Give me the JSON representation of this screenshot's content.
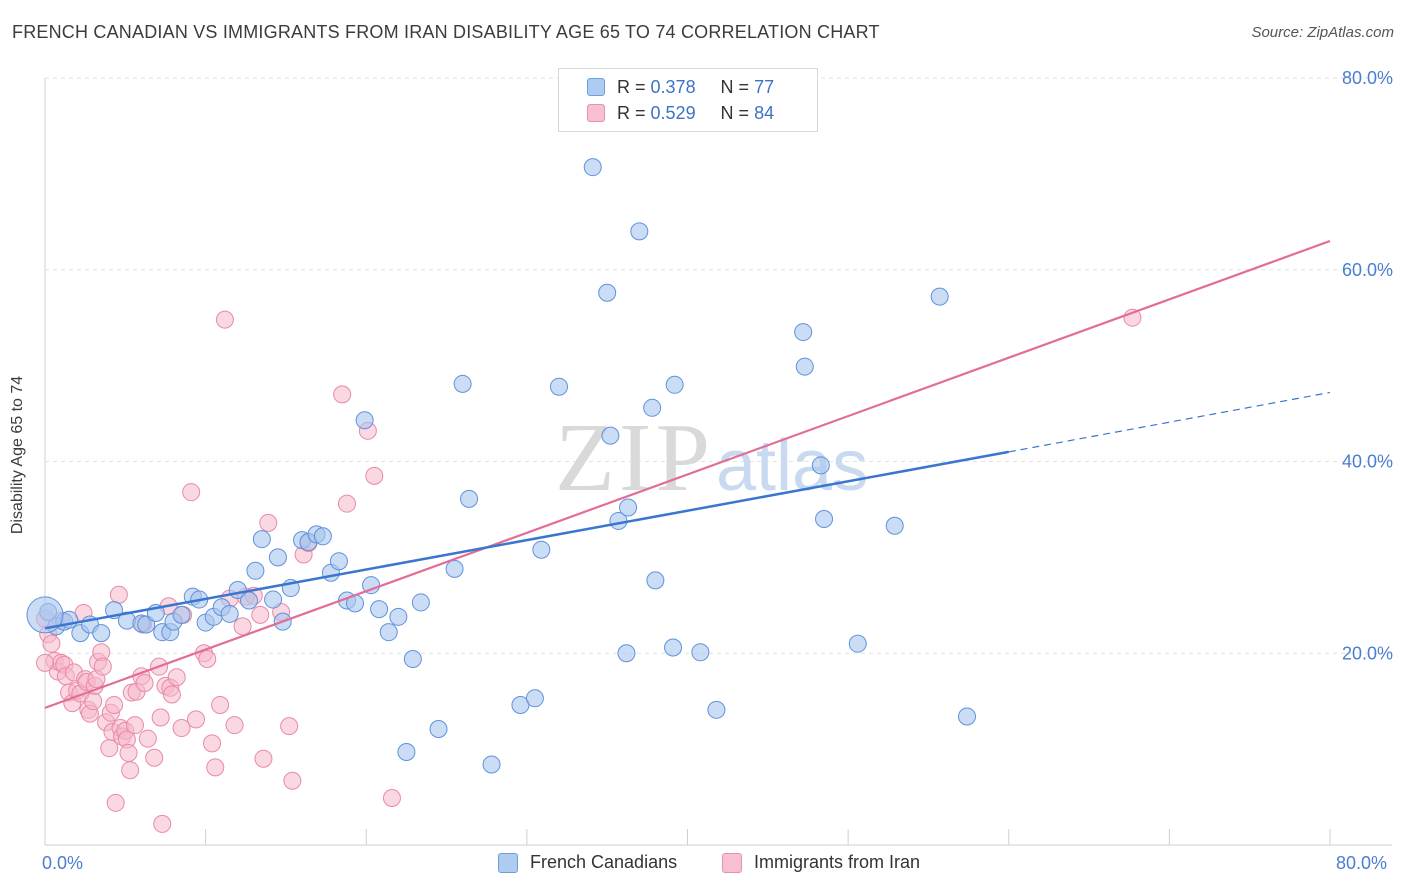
{
  "title": "FRENCH CANADIAN VS IMMIGRANTS FROM IRAN DISABILITY AGE 65 TO 74 CORRELATION CHART",
  "source": "Source: ZipAtlas.com",
  "watermark": {
    "zip": "ZIP",
    "atlas": "atlas"
  },
  "legend": {
    "r_label": "R =",
    "n_label": "N =",
    "series": [
      {
        "r": "0.378",
        "n": "77",
        "swatch_fill": "#aecbf2",
        "swatch_border": "#6f9ee0"
      },
      {
        "r": "0.529",
        "n": "84",
        "swatch_fill": "#f7c0d0",
        "swatch_border": "#ec8fab"
      }
    ]
  },
  "bottom_legend": [
    "French Canadians",
    "Immigrants from Iran"
  ],
  "colors": {
    "blue": "#3a76d0",
    "blue_fill": "#a9c6ef",
    "pink": "#e26d96",
    "pink_fill": "#f5b8cb",
    "tick": "#4a7ecf"
  },
  "chart_data": {
    "type": "scatter",
    "title": "FRENCH CANADIAN VS IMMIGRANTS FROM IRAN DISABILITY AGE 65 TO 74 CORRELATION CHART",
    "xlabel": "",
    "ylabel": "Disability Age 65 to 74",
    "xlim": [
      0,
      80
    ],
    "ylim": [
      0,
      80
    ],
    "x_tick_labels": [
      "0.0%",
      "80.0%"
    ],
    "y_ticks": [
      20,
      40,
      60,
      80
    ],
    "y_tick_labels": [
      "20.0%",
      "40.0%",
      "60.0%",
      "80.0%"
    ],
    "grid": true,
    "legend_position": "top-center",
    "series": [
      {
        "name": "French Canadians",
        "r": 0.378,
        "n": 77,
        "trend": {
          "x0": 0,
          "y0": 22.6,
          "x1": 60,
          "y1": 41.0,
          "dash_to_x": 80,
          "dash_to_y": 47.2
        },
        "points": [
          [
            0.2,
            24.3
          ],
          [
            0.7,
            22.8
          ],
          [
            1.2,
            23.3
          ],
          [
            1.5,
            23.5
          ],
          [
            2.2,
            22.1
          ],
          [
            2.8,
            23.0
          ],
          [
            3.5,
            22.1
          ],
          [
            4.3,
            24.5
          ],
          [
            5.1,
            23.4
          ],
          [
            6.0,
            23.1
          ],
          [
            6.3,
            23.0
          ],
          [
            6.9,
            24.2
          ],
          [
            7.3,
            22.2
          ],
          [
            7.8,
            22.2
          ],
          [
            8.0,
            23.3
          ],
          [
            8.5,
            24.0
          ],
          [
            9.2,
            25.9
          ],
          [
            9.6,
            25.6
          ],
          [
            10.0,
            23.2
          ],
          [
            10.5,
            23.8
          ],
          [
            11.0,
            24.8
          ],
          [
            11.5,
            24.1
          ],
          [
            12.0,
            26.6
          ],
          [
            12.7,
            25.5
          ],
          [
            13.1,
            28.6
          ],
          [
            13.5,
            31.9
          ],
          [
            14.2,
            25.6
          ],
          [
            14.5,
            30.0
          ],
          [
            14.8,
            23.3
          ],
          [
            15.3,
            26.8
          ],
          [
            16.0,
            31.8
          ],
          [
            16.4,
            31.6
          ],
          [
            16.9,
            32.4
          ],
          [
            17.3,
            32.2
          ],
          [
            17.8,
            28.4
          ],
          [
            18.3,
            29.6
          ],
          [
            18.8,
            25.5
          ],
          [
            19.3,
            25.2
          ],
          [
            19.9,
            44.3
          ],
          [
            20.3,
            27.1
          ],
          [
            20.8,
            24.6
          ],
          [
            21.4,
            22.2
          ],
          [
            22.0,
            23.8
          ],
          [
            22.5,
            9.7
          ],
          [
            22.9,
            19.4
          ],
          [
            23.4,
            25.3
          ],
          [
            24.5,
            12.1
          ],
          [
            25.5,
            28.8
          ],
          [
            26.0,
            48.1
          ],
          [
            26.4,
            36.1
          ],
          [
            27.8,
            8.4
          ],
          [
            29.6,
            14.6
          ],
          [
            30.5,
            15.3
          ],
          [
            30.9,
            30.8
          ],
          [
            32.0,
            47.8
          ],
          [
            34.1,
            70.7
          ],
          [
            35.0,
            57.6
          ],
          [
            35.2,
            42.7
          ],
          [
            35.7,
            33.8
          ],
          [
            36.2,
            20.0
          ],
          [
            36.3,
            35.2
          ],
          [
            37.0,
            64.0
          ],
          [
            37.8,
            45.6
          ],
          [
            38.0,
            27.6
          ],
          [
            39.1,
            20.6
          ],
          [
            39.2,
            48.0
          ],
          [
            40.8,
            20.1
          ],
          [
            41.8,
            14.1
          ],
          [
            47.2,
            53.5
          ],
          [
            47.3,
            49.9
          ],
          [
            48.3,
            39.6
          ],
          [
            48.5,
            34.0
          ],
          [
            50.6,
            21.0
          ],
          [
            52.9,
            33.3
          ],
          [
            55.7,
            57.2
          ],
          [
            57.4,
            13.4
          ],
          [
            0.0,
            24.0
          ]
        ]
      },
      {
        "name": "Immigrants from Iran",
        "r": 0.529,
        "n": 84,
        "trend": {
          "x0": 0,
          "y0": 14.3,
          "x1": 80,
          "y1": 63.0
        },
        "points": [
          [
            0.2,
            22.0
          ],
          [
            0.4,
            21.0
          ],
          [
            0.6,
            19.2
          ],
          [
            0.8,
            18.1
          ],
          [
            1.0,
            19.0
          ],
          [
            1.2,
            18.8
          ],
          [
            1.3,
            17.6
          ],
          [
            1.5,
            15.9
          ],
          [
            1.7,
            14.8
          ],
          [
            1.8,
            18.0
          ],
          [
            2.0,
            16.1
          ],
          [
            2.2,
            15.8
          ],
          [
            2.5,
            17.3
          ],
          [
            2.6,
            17.0
          ],
          [
            2.7,
            14.1
          ],
          [
            2.8,
            13.7
          ],
          [
            3.0,
            15.0
          ],
          [
            3.1,
            16.6
          ],
          [
            3.2,
            17.3
          ],
          [
            3.3,
            19.1
          ],
          [
            3.5,
            20.1
          ],
          [
            3.6,
            18.6
          ],
          [
            3.8,
            12.8
          ],
          [
            4.0,
            10.1
          ],
          [
            4.1,
            13.8
          ],
          [
            4.2,
            11.8
          ],
          [
            4.3,
            14.6
          ],
          [
            4.4,
            4.4
          ],
          [
            4.6,
            26.1
          ],
          [
            4.7,
            12.2
          ],
          [
            4.8,
            11.3
          ],
          [
            5.0,
            11.9
          ],
          [
            5.1,
            11.0
          ],
          [
            5.2,
            9.6
          ],
          [
            5.3,
            7.8
          ],
          [
            5.4,
            15.9
          ],
          [
            5.6,
            12.5
          ],
          [
            5.7,
            16.0
          ],
          [
            6.0,
            17.6
          ],
          [
            6.1,
            23.0
          ],
          [
            6.2,
            16.9
          ],
          [
            6.4,
            11.1
          ],
          [
            6.8,
            9.1
          ],
          [
            7.1,
            18.6
          ],
          [
            7.2,
            13.3
          ],
          [
            7.3,
            2.2
          ],
          [
            7.5,
            16.6
          ],
          [
            7.7,
            24.9
          ],
          [
            7.8,
            16.4
          ],
          [
            7.9,
            15.7
          ],
          [
            8.2,
            17.5
          ],
          [
            8.5,
            12.2
          ],
          [
            8.6,
            24.0
          ],
          [
            9.1,
            36.8
          ],
          [
            9.4,
            13.1
          ],
          [
            9.9,
            20.0
          ],
          [
            10.1,
            19.4
          ],
          [
            10.4,
            10.6
          ],
          [
            10.6,
            8.1
          ],
          [
            10.9,
            14.6
          ],
          [
            11.2,
            54.8
          ],
          [
            11.5,
            25.7
          ],
          [
            11.8,
            12.5
          ],
          [
            12.3,
            22.8
          ],
          [
            12.5,
            25.9
          ],
          [
            13.0,
            26.0
          ],
          [
            13.4,
            24.0
          ],
          [
            13.6,
            9.0
          ],
          [
            13.9,
            33.6
          ],
          [
            14.7,
            24.3
          ],
          [
            15.2,
            12.4
          ],
          [
            15.4,
            6.7
          ],
          [
            16.1,
            30.3
          ],
          [
            16.4,
            31.5
          ],
          [
            18.5,
            47.0
          ],
          [
            18.8,
            35.6
          ],
          [
            20.5,
            38.5
          ],
          [
            20.1,
            43.2
          ],
          [
            21.6,
            4.9
          ],
          [
            67.7,
            55.0
          ],
          [
            0.0,
            23.6
          ],
          [
            0.0,
            19.0
          ],
          [
            1.0,
            23.4
          ],
          [
            2.4,
            24.2
          ]
        ]
      }
    ]
  }
}
